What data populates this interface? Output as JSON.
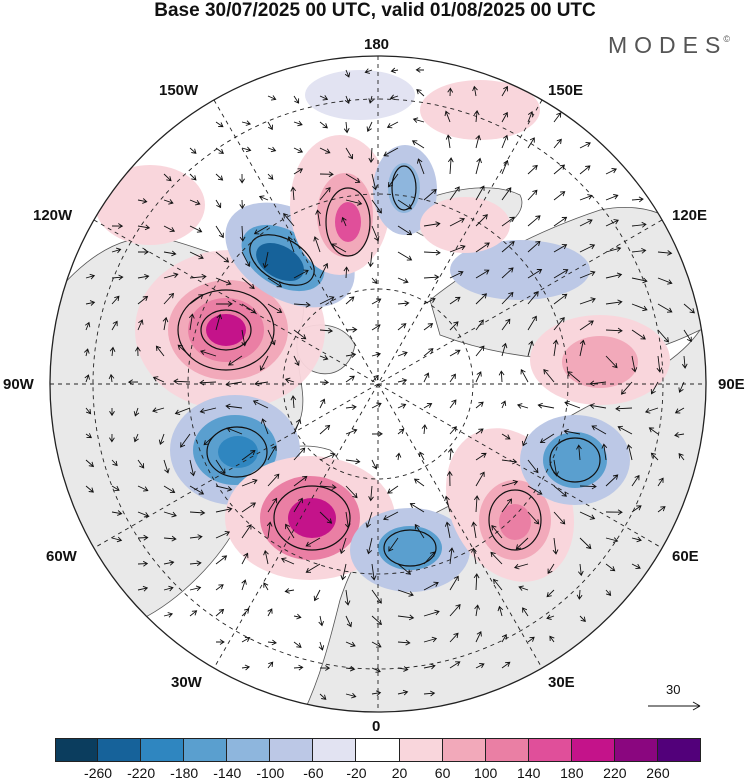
{
  "header": {
    "title": "Base 30/07/2025 00 UTC, valid 01/08/2025 00 UTC",
    "brand": "MODES",
    "brand_mark": "©"
  },
  "map": {
    "projection": "north polar stereographic",
    "longitude_labels": {
      "deg_180": "180",
      "deg_150e": "150E",
      "deg_120e": "120E",
      "deg_90e": "90E",
      "deg_60e": "60E",
      "deg_30e": "30E",
      "deg_0": "0",
      "deg_30w": "30W",
      "deg_60w": "60W",
      "deg_90w": "90W",
      "deg_120w": "120W",
      "deg_150w": "150W"
    },
    "reference_vector": "30"
  },
  "colorbar": {
    "labels": [
      "-260",
      "-220",
      "-180",
      "-140",
      "-100",
      "-60",
      "-20",
      "20",
      "60",
      "100",
      "140",
      "180",
      "220",
      "260"
    ],
    "colors": [
      "#0b3d5e",
      "#16629a",
      "#2f86c0",
      "#5a9fcf",
      "#8eb6dd",
      "#bcc8e6",
      "#e2e3f2",
      "#ffffff",
      "#f9d6dc",
      "#f2a9ba",
      "#ea7fa4",
      "#e04f9a",
      "#c4138a",
      "#8a067f",
      "#52007a"
    ]
  },
  "colors": {
    "background": "#ffffff",
    "land": "#e9e9e9",
    "positive_center": "#c4138a",
    "negative_center": "#0b3d5e"
  }
}
